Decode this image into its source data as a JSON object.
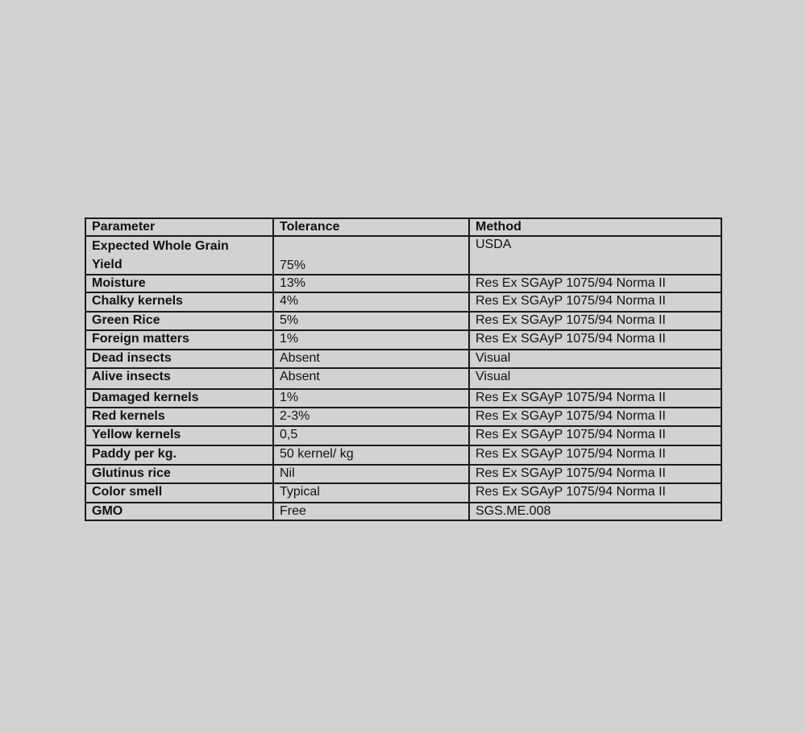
{
  "table": {
    "headers": [
      "Parameter",
      "Tolerance",
      "Method"
    ],
    "first_row": {
      "parameter_line1": "Expected Whole Grain",
      "parameter_line2": "Yield",
      "tolerance": "75%",
      "method": "USDA"
    },
    "rows": [
      [
        "Moisture",
        "13%",
        "Res Ex SGAyP 1075/94 Norma II"
      ],
      [
        "Chalky kernels",
        "4%",
        "Res Ex SGAyP 1075/94 Norma II"
      ],
      [
        "Green Rice",
        "5%",
        "Res Ex SGAyP 1075/94 Norma II"
      ],
      [
        "Foreign matters",
        "1%",
        "Res Ex SGAyP 1075/94 Norma II"
      ],
      [
        "Dead insects",
        "Absent",
        "Visual"
      ],
      [
        "Alive insects",
        "Absent",
        "Visual"
      ],
      [
        "Damaged kernels",
        "1%",
        "Res Ex SGAyP 1075/94 Norma II"
      ],
      [
        "Red kernels",
        "2-3%",
        "Res Ex SGAyP 1075/94 Norma II"
      ],
      [
        "Yellow kernels",
        "0,5",
        "Res Ex SGAyP 1075/94 Norma II"
      ],
      [
        "Paddy per kg.",
        "50 kernel/ kg",
        "Res Ex SGAyP 1075/94 Norma II"
      ],
      [
        "Glutinus rice",
        "Nil",
        "Res Ex SGAyP 1075/94 Norma II"
      ],
      [
        "Color smell",
        "Typical",
        "Res Ex SGAyP 1075/94 Norma II"
      ],
      [
        "GMO",
        "Free",
        "SGS.ME.008"
      ]
    ]
  }
}
